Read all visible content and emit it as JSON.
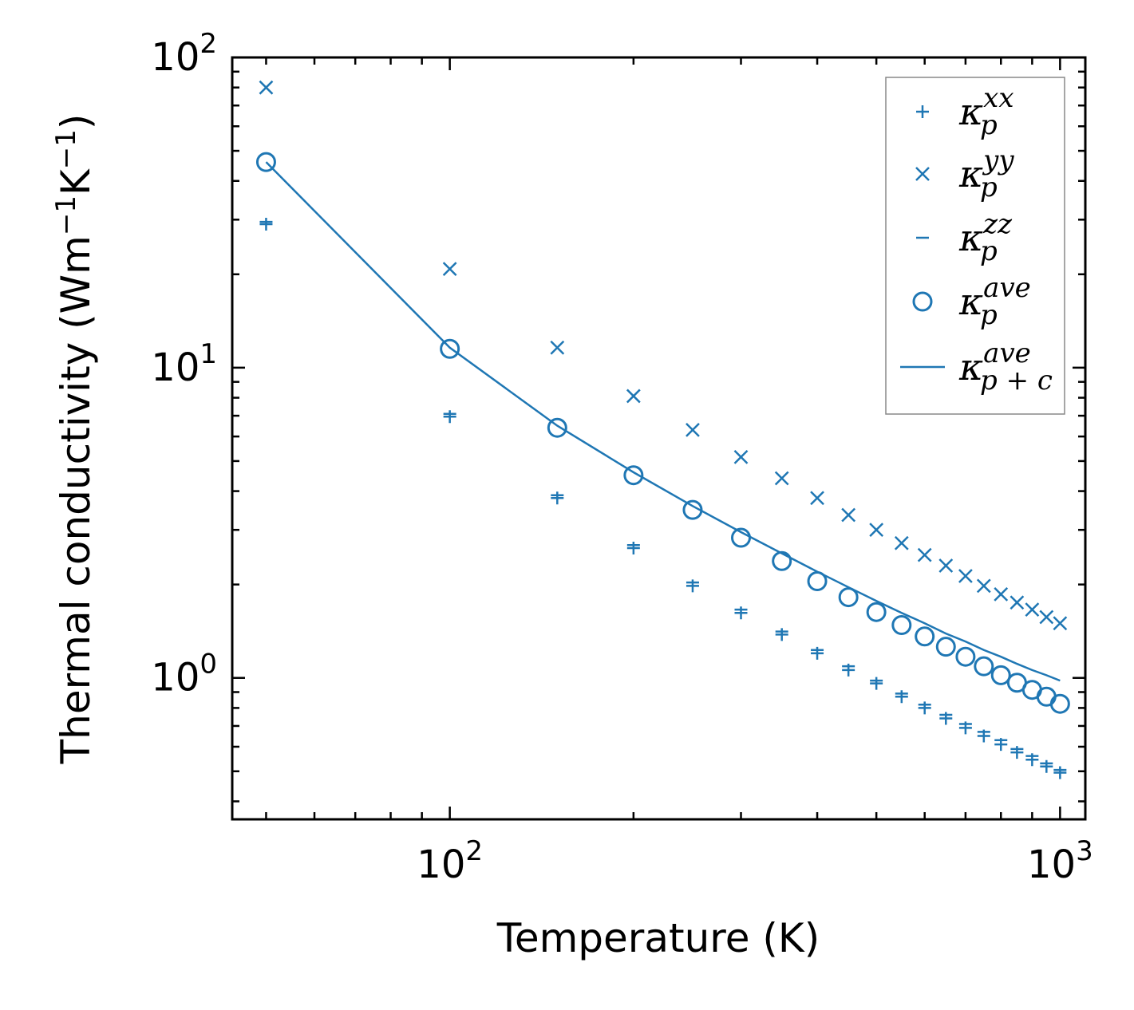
{
  "chart_data": {
    "type": "scatter",
    "title": "",
    "xlabel": "Temperature (K)",
    "ylabel": "Thermal conductivity (Wm",
    "ylabel_unit_parts": [
      "−1",
      "K",
      "−1",
      ")"
    ],
    "xscale": "log",
    "yscale": "log",
    "xlim": [
      44,
      1100
    ],
    "ylim": [
      0.35,
      100
    ],
    "x_ticks": [
      {
        "base": "10",
        "exp": "2"
      },
      {
        "base": "10",
        "exp": "3"
      }
    ],
    "y_ticks": [
      {
        "base": "10",
        "exp": "0"
      },
      {
        "base": "10",
        "exp": "1"
      },
      {
        "base": "10",
        "exp": "2"
      }
    ],
    "legend_position": "top-right",
    "color": "#1f77b4",
    "x": [
      50,
      100,
      150,
      200,
      250,
      300,
      350,
      400,
      450,
      500,
      550,
      600,
      650,
      700,
      750,
      800,
      850,
      900,
      950,
      1000
    ],
    "series": [
      {
        "name": "kappa_p^xx",
        "label_main": "κ",
        "label_sub": "p",
        "label_sup": "xx",
        "marker": "plus",
        "values": [
          29.0,
          6.95,
          3.8,
          2.62,
          1.98,
          1.62,
          1.38,
          1.2,
          1.06,
          0.96,
          0.87,
          0.8,
          0.74,
          0.69,
          0.65,
          0.61,
          0.575,
          0.545,
          0.518,
          0.495
        ]
      },
      {
        "name": "kappa_p^yy",
        "label_main": "κ",
        "label_sub": "p",
        "label_sup": "yy",
        "marker": "x",
        "values": [
          80,
          20.8,
          11.6,
          8.1,
          6.3,
          5.15,
          4.4,
          3.8,
          3.35,
          3.0,
          2.72,
          2.49,
          2.3,
          2.13,
          1.98,
          1.86,
          1.75,
          1.66,
          1.57,
          1.5
        ]
      },
      {
        "name": "kappa_p^zz",
        "label_main": "κ",
        "label_sub": "p",
        "label_sup": "zz",
        "marker": "hline",
        "values": [
          29.5,
          7.1,
          3.88,
          2.68,
          2.03,
          1.66,
          1.41,
          1.23,
          1.09,
          0.98,
          0.89,
          0.82,
          0.76,
          0.71,
          0.67,
          0.63,
          0.59,
          0.56,
          0.53,
          0.505
        ]
      },
      {
        "name": "kappa_p^ave",
        "label_main": "κ",
        "label_sub": "p",
        "label_sup": "ave",
        "marker": "circle",
        "values": [
          46,
          11.5,
          6.4,
          4.5,
          3.48,
          2.83,
          2.38,
          2.05,
          1.82,
          1.63,
          1.48,
          1.36,
          1.26,
          1.17,
          1.09,
          1.02,
          0.965,
          0.915,
          0.87,
          0.825
        ]
      },
      {
        "name": "kappa_p+c^ave",
        "label_main": "κ",
        "label_sub": "p + c",
        "label_sup": "ave",
        "marker": "line",
        "values": [
          46,
          11.6,
          6.5,
          4.6,
          3.58,
          2.95,
          2.52,
          2.2,
          1.96,
          1.77,
          1.62,
          1.5,
          1.39,
          1.31,
          1.23,
          1.17,
          1.11,
          1.06,
          1.02,
          0.98
        ]
      }
    ]
  }
}
